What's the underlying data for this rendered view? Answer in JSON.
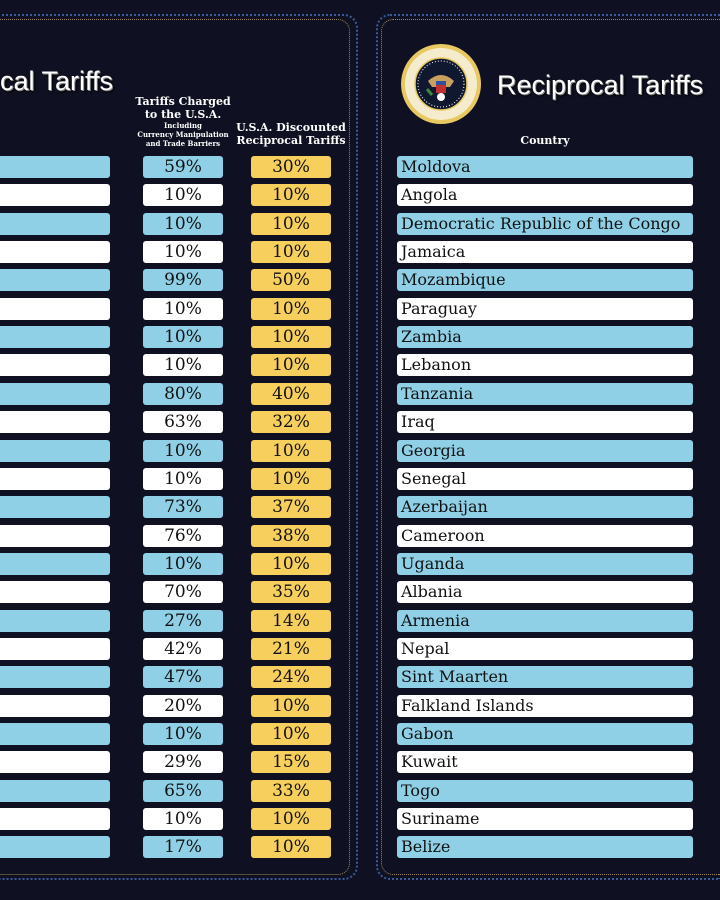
{
  "left_panel": {
    "title": "cal Tariffs",
    "col_charged": {
      "line1": "Tariffs Charged",
      "line2": "to the U.S.A.",
      "line3": "Including",
      "line4": "Currency Manipulation",
      "line5": "and Trade Barriers"
    },
    "col_discounted": {
      "line1": "U.S.A. Discounted",
      "line2": "Reciprocal Tariffs"
    },
    "rows": [
      {
        "charged": "59%",
        "discounted": "30%"
      },
      {
        "charged": "10%",
        "discounted": "10%"
      },
      {
        "charged": "10%",
        "discounted": "10%"
      },
      {
        "charged": "10%",
        "discounted": "10%"
      },
      {
        "charged": "99%",
        "discounted": "50%"
      },
      {
        "charged": "10%",
        "discounted": "10%"
      },
      {
        "charged": "10%",
        "discounted": "10%"
      },
      {
        "charged": "10%",
        "discounted": "10%"
      },
      {
        "charged": "80%",
        "discounted": "40%"
      },
      {
        "charged": "63%",
        "discounted": "32%"
      },
      {
        "charged": "10%",
        "discounted": "10%"
      },
      {
        "charged": "10%",
        "discounted": "10%"
      },
      {
        "charged": "73%",
        "discounted": "37%"
      },
      {
        "charged": "76%",
        "discounted": "38%"
      },
      {
        "charged": "10%",
        "discounted": "10%"
      },
      {
        "charged": "70%",
        "discounted": "35%"
      },
      {
        "charged": "27%",
        "discounted": "14%"
      },
      {
        "charged": "42%",
        "discounted": "21%"
      },
      {
        "charged": "47%",
        "discounted": "24%"
      },
      {
        "charged": "20%",
        "discounted": "10%"
      },
      {
        "charged": "10%",
        "discounted": "10%"
      },
      {
        "charged": "29%",
        "discounted": "15%"
      },
      {
        "charged": "65%",
        "discounted": "33%"
      },
      {
        "charged": "10%",
        "discounted": "10%"
      },
      {
        "charged": "17%",
        "discounted": "10%"
      }
    ]
  },
  "right_panel": {
    "seal_text": "SEAL OF THE PRESIDENT OF THE UNITED STATES",
    "title": "Reciprocal Tariffs",
    "col_country": "Country",
    "countries": [
      "Moldova",
      "Angola",
      "Democratic Republic of the Congo",
      "Jamaica",
      "Mozambique",
      "Paraguay",
      "Zambia",
      "Lebanon",
      "Tanzania",
      "Iraq",
      "Georgia",
      "Senegal",
      "Azerbaijan",
      "Cameroon",
      "Uganda",
      "Albania",
      "Armenia",
      "Nepal",
      "Sint Maarten",
      "Falkland Islands",
      "Gabon",
      "Kuwait",
      "Togo",
      "Suriname",
      "Belize"
    ]
  },
  "colors": {
    "background": "#0f1122",
    "row_blue": "#8fd0e6",
    "row_white": "#ffffff",
    "discount_gold": "#f6cf5c"
  }
}
